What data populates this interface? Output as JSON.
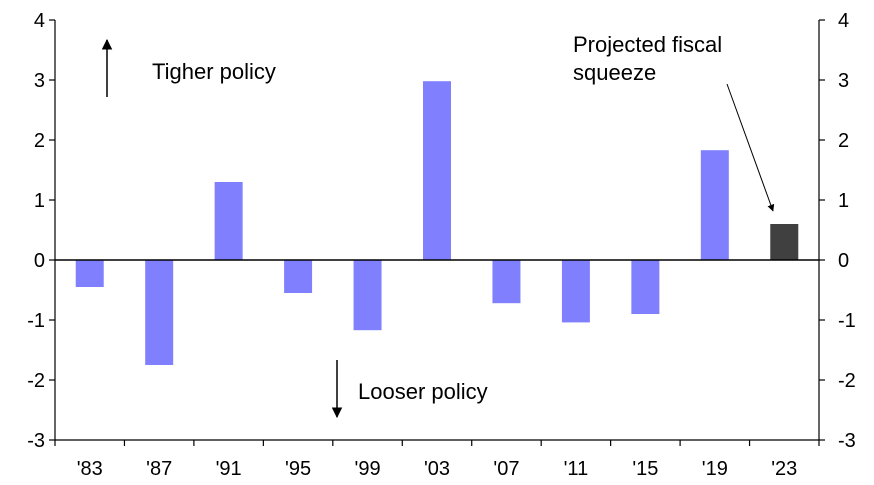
{
  "chart_data": {
    "type": "bar",
    "categories": [
      "'83",
      "'87",
      "'91",
      "'95",
      "'99",
      "'03",
      "'07",
      "'11",
      "'15",
      "'19",
      "'23"
    ],
    "values": [
      -0.45,
      -1.75,
      1.3,
      -0.55,
      -1.17,
      2.98,
      -0.72,
      -1.04,
      -0.9,
      1.83,
      0.6
    ],
    "series_colors": [
      "#8080ff",
      "#8080ff",
      "#8080ff",
      "#8080ff",
      "#8080ff",
      "#8080ff",
      "#8080ff",
      "#8080ff",
      "#8080ff",
      "#8080ff",
      "#404040"
    ],
    "ylim": [
      -3,
      4
    ],
    "yticks": [
      "4",
      "3",
      "2",
      "1",
      "0",
      "-1",
      "-2",
      "-3"
    ],
    "ytick_values": [
      4,
      3,
      2,
      1,
      0,
      -1,
      -2,
      -3
    ],
    "right_axis": true,
    "grid": false,
    "title": "",
    "xlabel": "",
    "ylabel": "",
    "annotations": {
      "tighter": "Tigher policy",
      "looser": "Looser policy",
      "projected_line1": "Projected fiscal",
      "projected_line2": "squeeze"
    }
  }
}
